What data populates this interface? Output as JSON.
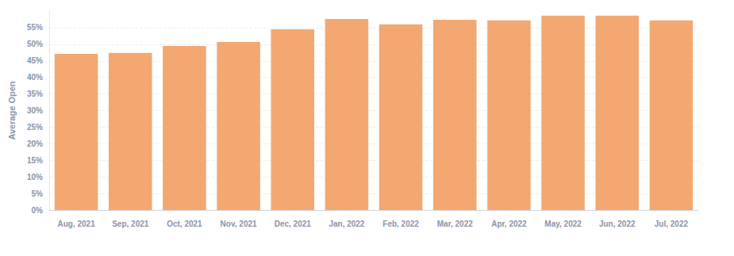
{
  "chart_data": {
    "type": "bar",
    "y_label": "Average Open",
    "categories": [
      "Aug, 2021",
      "Sep, 2021",
      "Oct, 2021",
      "Nov, 2021",
      "Dec, 2021",
      "Jan, 2022",
      "Feb, 2022",
      "Mar, 2022",
      "Apr, 2022",
      "May, 2022",
      "Jun, 2022",
      "Jul, 2022"
    ],
    "values": [
      47.1,
      47.4,
      49.5,
      50.7,
      54.5,
      57.6,
      56.0,
      57.4,
      57.2,
      58.6,
      58.6,
      57.2
    ],
    "color": "#f2a870",
    "ylim": [
      0,
      60
    ],
    "yticks": [
      {
        "value": 0,
        "label": "0%"
      },
      {
        "value": 5,
        "label": "5%"
      },
      {
        "value": 10,
        "label": "10%"
      },
      {
        "value": 15,
        "label": "15%"
      },
      {
        "value": 20,
        "label": "20%"
      },
      {
        "value": 25,
        "label": "25%"
      },
      {
        "value": 30,
        "label": "30%"
      },
      {
        "value": 35,
        "label": "35%"
      },
      {
        "value": 40,
        "label": "40%"
      },
      {
        "value": 45,
        "label": "45%"
      },
      {
        "value": 50,
        "label": "50%"
      },
      {
        "value": 55,
        "label": "55%"
      }
    ],
    "grid": true
  }
}
